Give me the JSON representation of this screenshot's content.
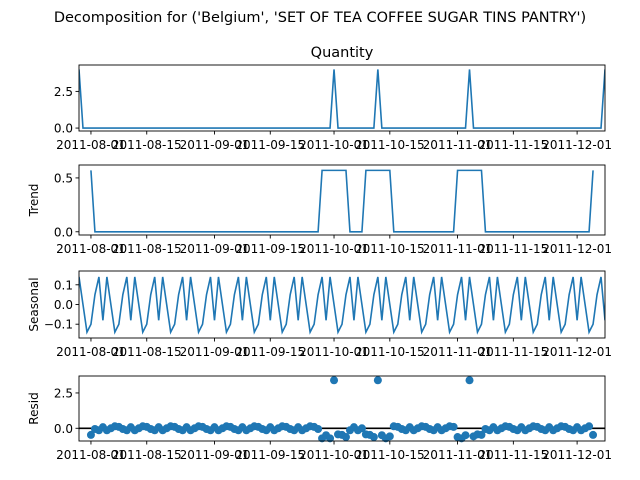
{
  "chart_data": {
    "type": "line",
    "suptitle": "Decomposition for ('Belgium', 'SET OF TEA COFFEE SUGAR TINS PANTRY')",
    "x_start": "2011-07-29",
    "x_end": "2011-12-08",
    "x_tick_labels": [
      "2011-08-01",
      "2011-08-15",
      "2011-09-01",
      "2011-09-15",
      "2011-10-01",
      "2011-10-15",
      "2011-11-01",
      "2011-11-15",
      "2011-12-01"
    ],
    "x_tick_positions": [
      "2011-08-01",
      "2011-08-15",
      "2011-09-01",
      "2011-09-15",
      "2011-10-01",
      "2011-10-15",
      "2011-11-01",
      "2011-11-15",
      "2011-12-01"
    ],
    "line_color": "#1f77b4",
    "panels": [
      {
        "name": "observed",
        "title": "Quantity",
        "ylabel": "",
        "ylim": [
          -0.2,
          4.3
        ],
        "yticks": [
          0.0,
          2.5
        ],
        "ytick_labels": [
          "0.0",
          "2.5"
        ],
        "style": "line",
        "spikes": [
          {
            "date": "2011-10-01",
            "value": 4
          },
          {
            "date": "2011-10-12",
            "value": 4
          },
          {
            "date": "2011-11-04",
            "value": 4
          },
          {
            "date": "2011-12-08",
            "value": 4
          }
        ],
        "base": 0,
        "first_value": 4
      },
      {
        "name": "trend",
        "title": "",
        "ylabel": "Trend",
        "ylim": [
          -0.03,
          0.62
        ],
        "yticks": [
          0.0,
          0.5
        ],
        "ytick_labels": [
          "0.0",
          "0.5"
        ],
        "style": "line",
        "plateaus": [
          {
            "start": "2011-09-28",
            "end": "2011-10-04",
            "value": 0.57
          },
          {
            "start": "2011-10-09",
            "end": "2011-10-15",
            "value": 0.57
          },
          {
            "start": "2011-11-01",
            "end": "2011-11-07",
            "value": 0.57
          }
        ],
        "start_value": {
          "date": "2011-08-01",
          "value": 0.57
        },
        "end_value": {
          "date": "2011-12-05",
          "value": 0.57
        },
        "valid_range": [
          "2011-08-01",
          "2011-12-05"
        ]
      },
      {
        "name": "seasonal",
        "title": "",
        "ylabel": "Seasonal",
        "ylim": [
          -0.17,
          0.17
        ],
        "yticks": [
          -0.1,
          0.0,
          0.1
        ],
        "ytick_labels": [
          "−0.1",
          "0.0",
          "0.1"
        ],
        "style": "line",
        "period_days": 7,
        "amplitude": 0.14,
        "pattern": [
          0.14,
          0.0,
          -0.14,
          -0.1,
          0.05,
          0.14,
          -0.08
        ]
      },
      {
        "name": "resid",
        "title": "",
        "ylabel": "Resid",
        "ylim": [
          -0.9,
          3.7
        ],
        "yticks": [
          0.0,
          2.5
        ],
        "ytick_labels": [
          "0.0",
          "2.5"
        ],
        "style": "scatter",
        "zero_line": true,
        "outliers": [
          {
            "date": "2011-10-01",
            "value": 3.4
          },
          {
            "date": "2011-10-12",
            "value": 3.4
          },
          {
            "date": "2011-11-04",
            "value": 3.4
          }
        ]
      }
    ]
  }
}
